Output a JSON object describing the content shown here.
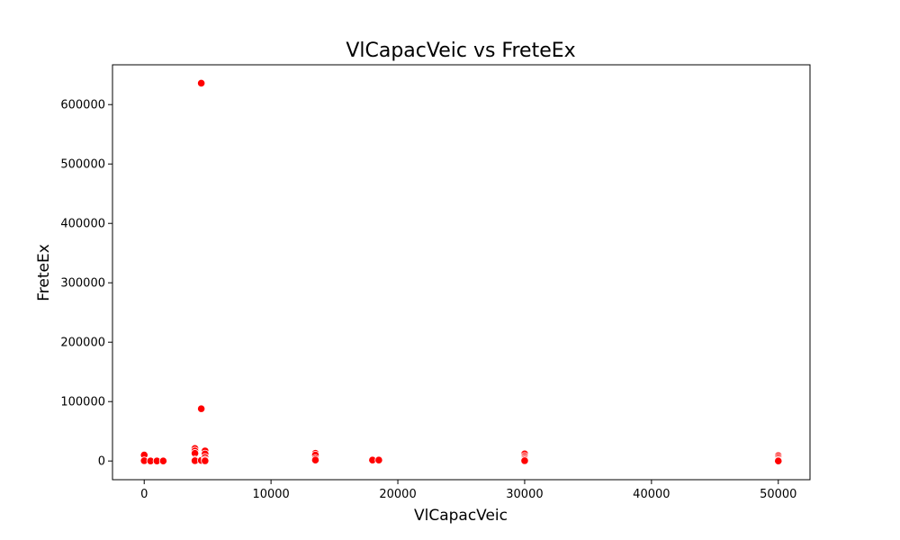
{
  "chart_data": {
    "type": "scatter",
    "title": "VlCapacVeic vs FreteEx",
    "xlabel": "VlCapacVeic",
    "ylabel": "FreteEx",
    "xlim": [
      -2500,
      52500
    ],
    "ylim": [
      -31500,
      667000
    ],
    "xticks": [
      0,
      10000,
      20000,
      30000,
      40000,
      50000
    ],
    "xtick_labels": [
      "0",
      "10000",
      "20000",
      "30000",
      "40000",
      "50000"
    ],
    "yticks": [
      0,
      100000,
      200000,
      300000,
      400000,
      500000,
      600000
    ],
    "ytick_labels": [
      "0",
      "100000",
      "200000",
      "300000",
      "400000",
      "500000",
      "600000"
    ],
    "grid": false,
    "legend": "none",
    "marker_color": "#ff0000",
    "points": [
      {
        "x": 0,
        "y": 10000
      },
      {
        "x": 0,
        "y": 500
      },
      {
        "x": 500,
        "y": 0
      },
      {
        "x": 1000,
        "y": 0
      },
      {
        "x": 1500,
        "y": 0
      },
      {
        "x": 4000,
        "y": 21000
      },
      {
        "x": 4000,
        "y": 17000
      },
      {
        "x": 4000,
        "y": 13000
      },
      {
        "x": 4000,
        "y": 2000
      },
      {
        "x": 4000,
        "y": 500
      },
      {
        "x": 4500,
        "y": 636000
      },
      {
        "x": 4500,
        "y": 88000
      },
      {
        "x": 4500,
        "y": 1000
      },
      {
        "x": 4800,
        "y": 17000
      },
      {
        "x": 4800,
        "y": 12000
      },
      {
        "x": 4800,
        "y": 6000
      },
      {
        "x": 4800,
        "y": 2000
      },
      {
        "x": 4800,
        "y": 300
      },
      {
        "x": 13500,
        "y": 13000
      },
      {
        "x": 13500,
        "y": 10000
      },
      {
        "x": 13500,
        "y": 4000
      },
      {
        "x": 13500,
        "y": 1500
      },
      {
        "x": 18000,
        "y": 1500
      },
      {
        "x": 18500,
        "y": 1500
      },
      {
        "x": 30000,
        "y": 12000
      },
      {
        "x": 30000,
        "y": 8000
      },
      {
        "x": 30000,
        "y": 5000
      },
      {
        "x": 30000,
        "y": 2500
      },
      {
        "x": 30000,
        "y": 500
      },
      {
        "x": 50000,
        "y": 9000
      },
      {
        "x": 50000,
        "y": 6000
      },
      {
        "x": 50000,
        "y": 3000
      },
      {
        "x": 50000,
        "y": 1000
      },
      {
        "x": 50000,
        "y": 0
      }
    ]
  }
}
